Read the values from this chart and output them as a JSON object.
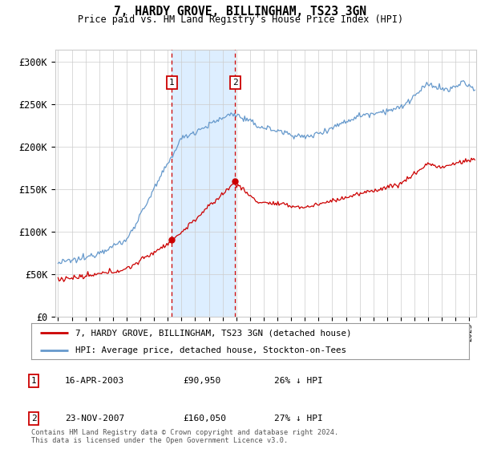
{
  "title": "7, HARDY GROVE, BILLINGHAM, TS23 3GN",
  "subtitle": "Price paid vs. HM Land Registry's House Price Index (HPI)",
  "ylabel_ticks": [
    "£0",
    "£50K",
    "£100K",
    "£150K",
    "£200K",
    "£250K",
    "£300K"
  ],
  "ytick_values": [
    0,
    50000,
    100000,
    150000,
    200000,
    250000,
    300000
  ],
  "ylim": [
    0,
    315000
  ],
  "xlim_start": 1994.8,
  "xlim_end": 2025.5,
  "hpi_color": "#6699cc",
  "price_color": "#cc0000",
  "sale1_date_num": 2003.29,
  "sale1_price": 90950,
  "sale1_label": "1",
  "sale2_date_num": 2007.9,
  "sale2_price": 160050,
  "sale2_label": "2",
  "legend_line1": "7, HARDY GROVE, BILLINGHAM, TS23 3GN (detached house)",
  "legend_line2": "HPI: Average price, detached house, Stockton-on-Tees",
  "table_row1_num": "1",
  "table_row1_date": "16-APR-2003",
  "table_row1_price": "£90,950",
  "table_row1_hpi": "26% ↓ HPI",
  "table_row2_num": "2",
  "table_row2_date": "23-NOV-2007",
  "table_row2_price": "£160,050",
  "table_row2_hpi": "27% ↓ HPI",
  "footer": "Contains HM Land Registry data © Crown copyright and database right 2024.\nThis data is licensed under the Open Government Licence v3.0.",
  "background_color": "#ffffff",
  "grid_color": "#cccccc",
  "shade_color": "#ddeeff"
}
